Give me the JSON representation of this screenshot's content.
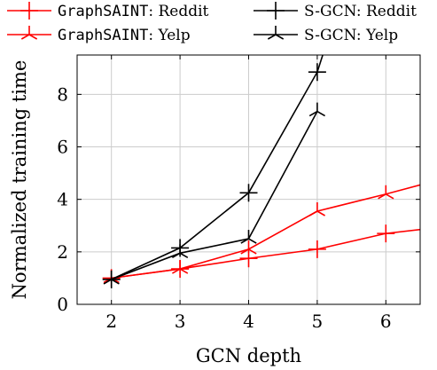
{
  "chart_data": {
    "type": "line",
    "xlabel": "GCN depth",
    "ylabel": "Normalized training time",
    "xlim": [
      1.5,
      6.5
    ],
    "ylim": [
      0,
      9.5
    ],
    "xticks": [
      2,
      3,
      4,
      5,
      6
    ],
    "yticks": [
      0,
      2,
      4,
      6,
      8
    ],
    "grid": true,
    "legend_position": "top, above plot, two columns",
    "series": [
      {
        "name_prefix": "GraphSAINT",
        "name_suffix": ": Reddit",
        "color": "#ff0000",
        "marker": "plus",
        "x": [
          2,
          3,
          4,
          5,
          6,
          6.5
        ],
        "y": [
          1.0,
          1.35,
          1.75,
          2.1,
          2.7,
          2.85
        ]
      },
      {
        "name_prefix": "GraphSAINT",
        "name_suffix": ": Yelp",
        "color": "#ff0000",
        "marker": "tri",
        "x": [
          2,
          3,
          4,
          5,
          6,
          6.5
        ],
        "y": [
          1.0,
          1.35,
          2.1,
          3.55,
          4.2,
          4.55
        ]
      },
      {
        "name_prefix": "",
        "name_suffix": "S-GCN: Reddit",
        "color": "#000000",
        "marker": "plus",
        "x": [
          2,
          3,
          4,
          5,
          5.08
        ],
        "y": [
          0.95,
          2.15,
          4.25,
          8.85,
          9.5
        ]
      },
      {
        "name_prefix": "",
        "name_suffix": "S-GCN: Yelp",
        "color": "#000000",
        "marker": "tri",
        "x": [
          2,
          3,
          4,
          5
        ],
        "y": [
          0.95,
          1.95,
          2.5,
          7.35
        ]
      }
    ]
  }
}
